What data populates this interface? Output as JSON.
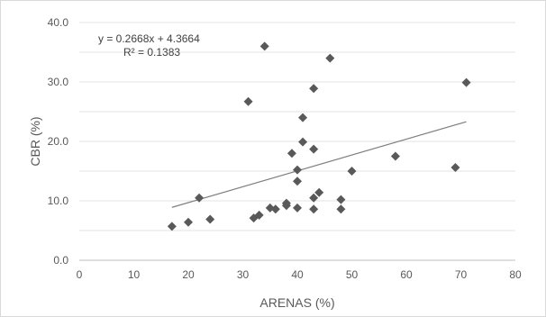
{
  "chart_data": {
    "type": "scatter",
    "xlabel": "ARENAS (%)",
    "ylabel": "CBR (%)",
    "xlim": [
      0,
      80
    ],
    "ylim": [
      0,
      40
    ],
    "x_ticks": [
      "0",
      "10",
      "20",
      "30",
      "40",
      "50",
      "60",
      "70",
      "80"
    ],
    "y_ticks": [
      "0.0",
      "10.0",
      "20.0",
      "30.0",
      "40.0"
    ],
    "grid": "horizontal",
    "marker": "diamond",
    "marker_color": "#595959",
    "points": [
      {
        "x": 17,
        "y": 5.7
      },
      {
        "x": 20,
        "y": 6.4
      },
      {
        "x": 22,
        "y": 10.5
      },
      {
        "x": 24,
        "y": 6.9
      },
      {
        "x": 31,
        "y": 26.7
      },
      {
        "x": 32,
        "y": 7.1
      },
      {
        "x": 33,
        "y": 7.6
      },
      {
        "x": 34,
        "y": 36.0
      },
      {
        "x": 35,
        "y": 8.8
      },
      {
        "x": 36,
        "y": 8.6
      },
      {
        "x": 38,
        "y": 9.2
      },
      {
        "x": 38,
        "y": 9.6
      },
      {
        "x": 39,
        "y": 18.0
      },
      {
        "x": 40,
        "y": 15.2
      },
      {
        "x": 40,
        "y": 13.3
      },
      {
        "x": 40,
        "y": 8.8
      },
      {
        "x": 41,
        "y": 19.9
      },
      {
        "x": 41,
        "y": 24.0
      },
      {
        "x": 43,
        "y": 28.9
      },
      {
        "x": 43,
        "y": 18.7
      },
      {
        "x": 43,
        "y": 10.5
      },
      {
        "x": 43,
        "y": 8.6
      },
      {
        "x": 44,
        "y": 11.4
      },
      {
        "x": 46,
        "y": 34.0
      },
      {
        "x": 48,
        "y": 10.2
      },
      {
        "x": 48,
        "y": 8.6
      },
      {
        "x": 50,
        "y": 15.0
      },
      {
        "x": 58,
        "y": 17.5
      },
      {
        "x": 69,
        "y": 15.6
      },
      {
        "x": 71,
        "y": 29.9
      }
    ],
    "trendline": {
      "slope": 0.2668,
      "intercept": 4.3664,
      "x_range": [
        17,
        71
      ],
      "color": "#7f7f7f",
      "equation_label": "y = 0.2668x + 4.3664",
      "r2_label": "R² = 0.1383"
    }
  }
}
